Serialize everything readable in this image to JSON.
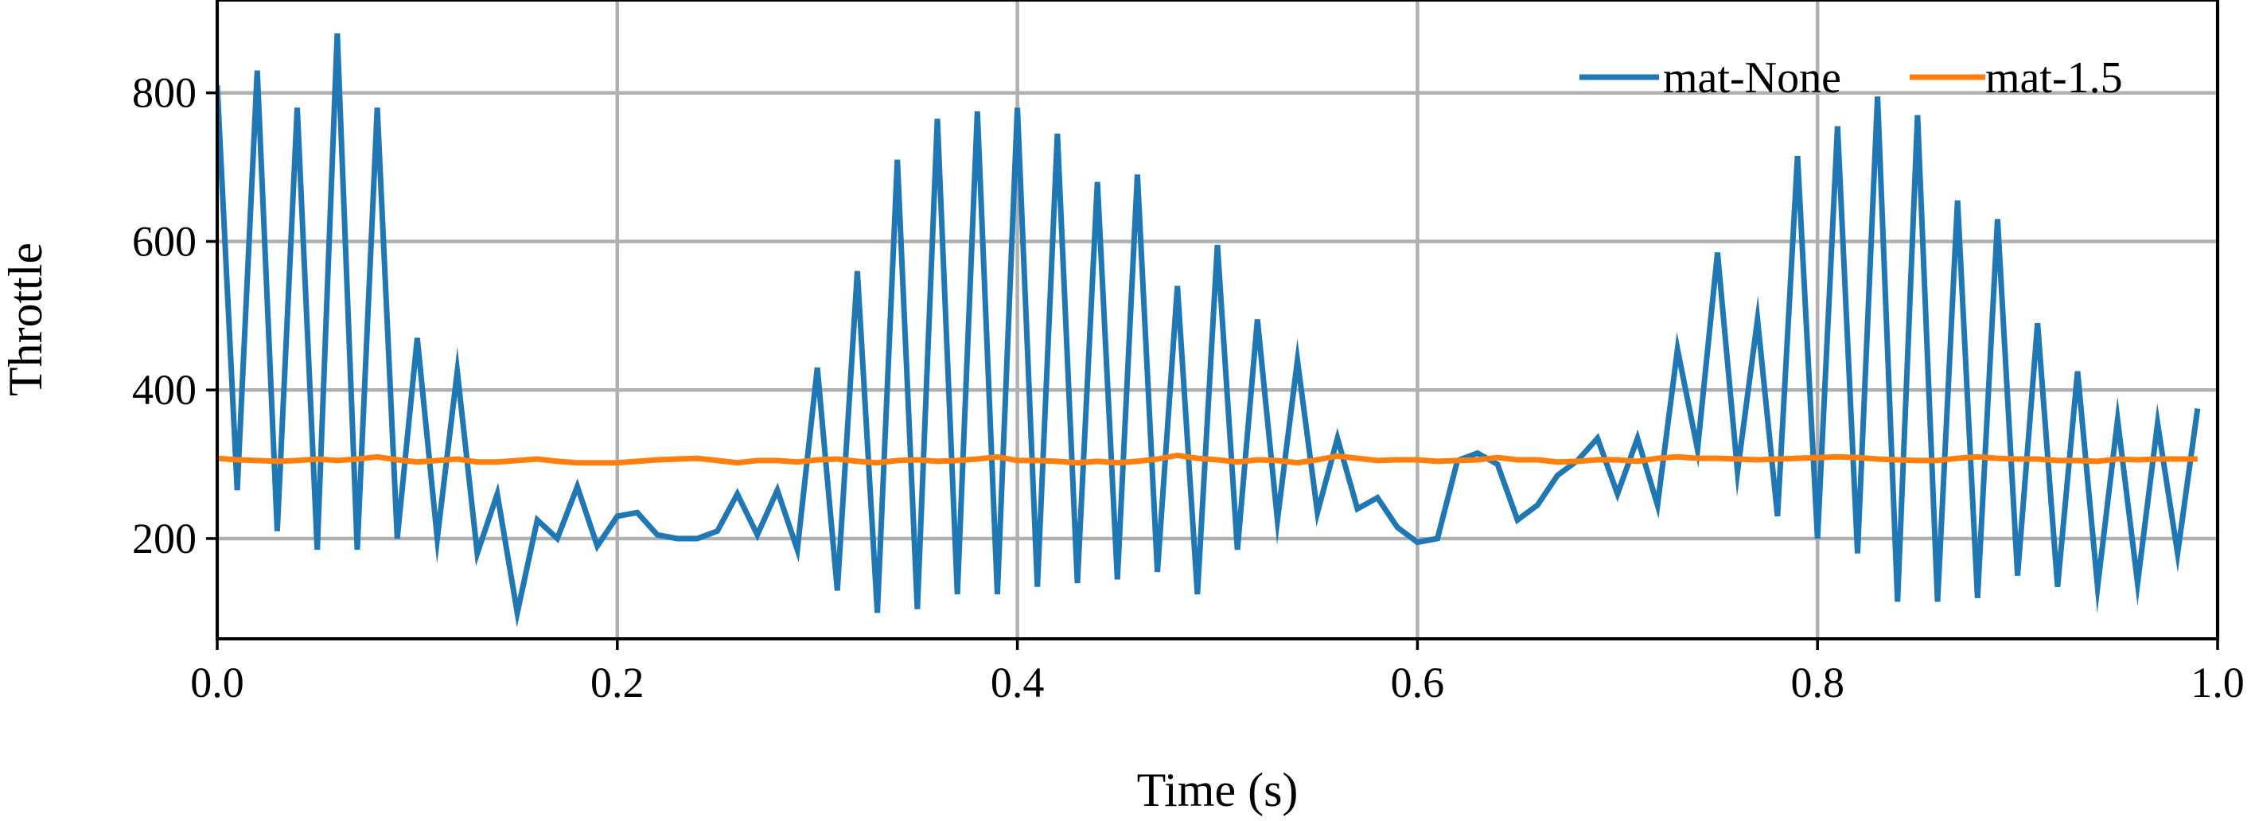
{
  "chart_data": {
    "type": "line",
    "title": "",
    "xlabel": "Time (s)",
    "ylabel": "Throttle",
    "xlim": [
      0.0,
      1.0
    ],
    "ylim": [
      65,
      925
    ],
    "xticks": [
      0.0,
      0.2,
      0.4,
      0.6,
      0.8,
      1.0
    ],
    "xtick_labels": [
      "0.0",
      "0.2",
      "0.4",
      "0.6",
      "0.8",
      "1.0"
    ],
    "yticks": [
      200,
      400,
      600,
      800
    ],
    "ytick_labels": [
      "200",
      "400",
      "600",
      "800"
    ],
    "grid": true,
    "legend": "top-right",
    "x": [
      0.0,
      0.01,
      0.02,
      0.03,
      0.04,
      0.05,
      0.06,
      0.07,
      0.08,
      0.09,
      0.1,
      0.11,
      0.12,
      0.13,
      0.14,
      0.15,
      0.16,
      0.17,
      0.18,
      0.19,
      0.2,
      0.21,
      0.22,
      0.23,
      0.24,
      0.25,
      0.26,
      0.27,
      0.28,
      0.29,
      0.3,
      0.31,
      0.32,
      0.33,
      0.34,
      0.35,
      0.36,
      0.37,
      0.38,
      0.39,
      0.4,
      0.41,
      0.42,
      0.43,
      0.44,
      0.45,
      0.46,
      0.47,
      0.48,
      0.49,
      0.5,
      0.51,
      0.52,
      0.53,
      0.54,
      0.55,
      0.56,
      0.57,
      0.58,
      0.59,
      0.6,
      0.61,
      0.62,
      0.63,
      0.64,
      0.65,
      0.66,
      0.67,
      0.68,
      0.69,
      0.7,
      0.71,
      0.72,
      0.73,
      0.74,
      0.75,
      0.76,
      0.77,
      0.78,
      0.79,
      0.8,
      0.81,
      0.82,
      0.83,
      0.84,
      0.85,
      0.86,
      0.87,
      0.88,
      0.89,
      0.9,
      0.91,
      0.92,
      0.93,
      0.94,
      0.95,
      0.96,
      0.97,
      0.98,
      0.99
    ],
    "series": [
      {
        "name": "mat-None",
        "color": "#1f77b4",
        "values": [
          810,
          265,
          830,
          210,
          780,
          185,
          880,
          185,
          780,
          200,
          470,
          200,
          425,
          180,
          260,
          100,
          225,
          200,
          270,
          190,
          230,
          235,
          205,
          200,
          200,
          210,
          260,
          205,
          265,
          185,
          430,
          130,
          560,
          100,
          710,
          105,
          765,
          125,
          775,
          125,
          780,
          135,
          745,
          140,
          680,
          145,
          690,
          155,
          540,
          125,
          595,
          185,
          495,
          225,
          440,
          235,
          335,
          240,
          255,
          215,
          195,
          200,
          305,
          315,
          300,
          225,
          245,
          285,
          305,
          335,
          260,
          335,
          245,
          455,
          320,
          585,
          290,
          495,
          230,
          715,
          200,
          755,
          180,
          795,
          115,
          770,
          115,
          655,
          120,
          630,
          150,
          490,
          135,
          425,
          135,
          360,
          140,
          355,
          180,
          375
        ]
      },
      {
        "name": "mat-1.5",
        "color": "#ff7f0e",
        "values": [
          308,
          306,
          305,
          304,
          305,
          307,
          305,
          307,
          310,
          306,
          303,
          305,
          307,
          303,
          303,
          305,
          307,
          304,
          302,
          302,
          302,
          304,
          306,
          307,
          308,
          305,
          302,
          305,
          305,
          303,
          306,
          307,
          304,
          302,
          305,
          306,
          304,
          305,
          307,
          310,
          305,
          305,
          304,
          302,
          304,
          302,
          304,
          307,
          312,
          308,
          306,
          303,
          306,
          305,
          302,
          306,
          311,
          308,
          305,
          306,
          306,
          304,
          305,
          306,
          309,
          306,
          306,
          303,
          304,
          306,
          306,
          304,
          308,
          310,
          308,
          308,
          307,
          306,
          307,
          308,
          309,
          310,
          309,
          307,
          306,
          305,
          305,
          308,
          310,
          308,
          307,
          307,
          305,
          305,
          304,
          307,
          306,
          307,
          307,
          307
        ]
      }
    ]
  }
}
